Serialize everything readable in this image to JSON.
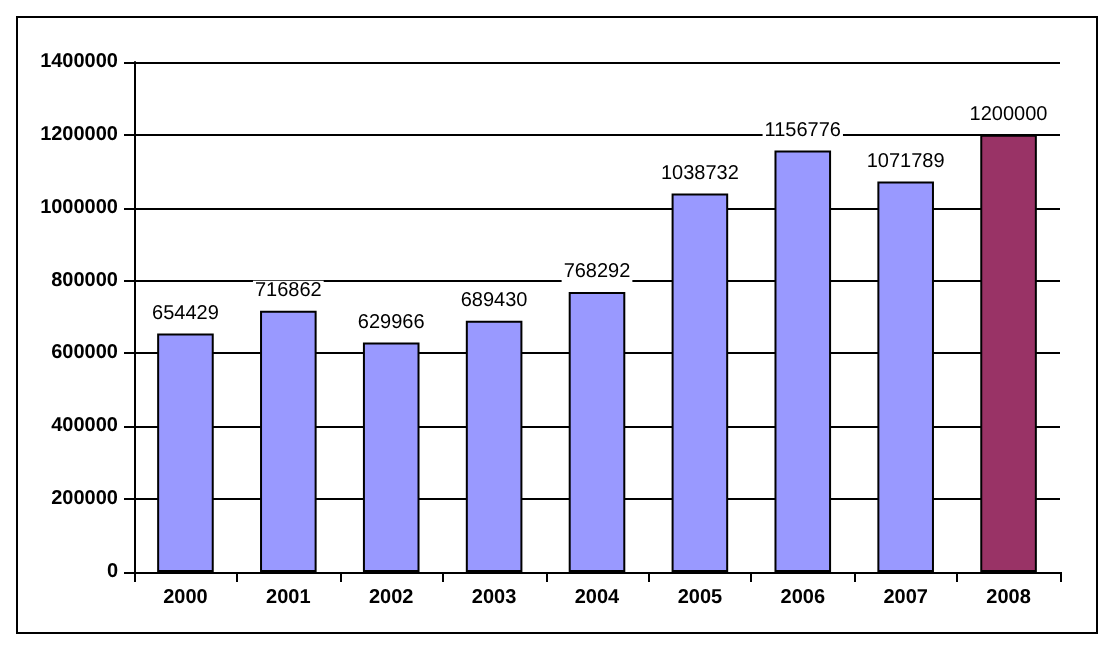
{
  "chart_data": {
    "type": "bar",
    "categories": [
      "2000",
      "2001",
      "2002",
      "2003",
      "2004",
      "2005",
      "2006",
      "2007",
      "2008"
    ],
    "values": [
      654429,
      716862,
      629966,
      689430,
      768292,
      1038732,
      1156776,
      1071789,
      1200000
    ],
    "colors": [
      "#9999ff",
      "#9999ff",
      "#9999ff",
      "#9999ff",
      "#9999ff",
      "#9999ff",
      "#9999ff",
      "#9999ff",
      "#993366"
    ],
    "ylim": [
      0,
      1400000
    ],
    "yticks": [
      0,
      200000,
      400000,
      600000,
      800000,
      1000000,
      1200000,
      1400000
    ],
    "grid": "y",
    "data_labels": true
  }
}
